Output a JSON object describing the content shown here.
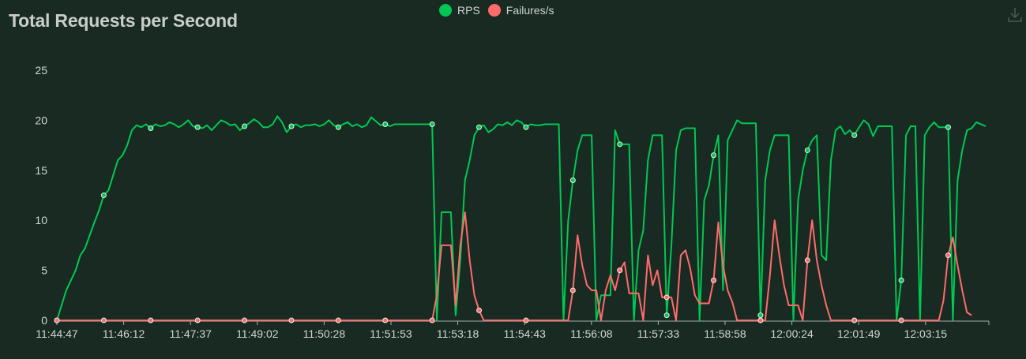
{
  "chart_data": {
    "type": "line",
    "title": "Total Requests per Second",
    "xlabel": "",
    "ylabel": "",
    "ylim": [
      0,
      25
    ],
    "yticks": [
      0,
      5,
      10,
      15,
      20,
      25
    ],
    "x_tick_labels": [
      "11:44:47",
      "11:46:12",
      "11:47:37",
      "11:49:02",
      "11:50:28",
      "11:51:53",
      "11:53:18",
      "11:54:43",
      "11:56:08",
      "11:57:33",
      "11:58:58",
      "12:00:24",
      "12:01:49",
      "12:03:15"
    ],
    "legend_position": "top-center",
    "series": [
      {
        "name": "RPS",
        "color": "#00c853",
        "values": [
          0,
          1.5,
          3,
          4,
          5,
          6.5,
          7.2,
          8.5,
          9.8,
          11,
          12.5,
          13,
          14.5,
          16,
          16.5,
          17.5,
          19,
          19.5,
          19.3,
          19.6,
          19.2,
          19.6,
          19.4,
          19.5,
          19.8,
          19.6,
          19.3,
          19.6,
          20.0,
          19.4,
          19.3,
          19.2,
          19.5,
          19.0,
          19.5,
          20.0,
          19.8,
          19.5,
          19.6,
          19.0,
          19.4,
          19.7,
          20.1,
          19.8,
          19.3,
          19.3,
          19.6,
          20.4,
          19.8,
          18.8,
          19.4,
          19.6,
          19.3,
          19.5,
          19.5,
          19.6,
          19.4,
          19.6,
          20.0,
          19.5,
          19.3,
          19.6,
          19.8,
          19.4,
          19.6,
          19.3,
          19.5,
          20.3,
          19.9,
          19.5,
          19.6,
          19.4,
          19.6,
          19.6,
          19.6,
          19.6,
          19.6,
          19.6,
          19.6,
          19.6,
          19.6,
          0,
          10.8,
          10.8,
          10.8,
          0.5,
          6,
          14,
          16,
          18.5,
          19.3,
          19.5,
          18.8,
          19.1,
          19.6,
          19.5,
          19.8,
          19.5,
          20.0,
          19.8,
          19.3,
          19.6,
          19.5,
          19.5,
          19.6,
          19.6,
          19.6,
          19.6,
          0,
          10,
          14,
          17,
          18.5,
          18.5,
          18.5,
          0,
          2.5,
          2.5,
          2.5,
          19.0,
          17.6,
          17.6,
          17.6,
          0,
          7,
          9,
          16,
          18.5,
          18.5,
          18.5,
          0.5,
          7.5,
          17.0,
          19.0,
          19.2,
          19.2,
          19.2,
          0,
          12,
          13.5,
          16.5,
          18.5,
          3,
          18,
          19.0,
          20.0,
          19.7,
          19.7,
          19.7,
          19.7,
          0.5,
          14,
          17,
          18.5,
          18.5,
          18.5,
          18.5,
          0,
          12,
          15,
          17,
          18,
          18.5,
          6.5,
          6,
          16,
          19.0,
          19.4,
          18.6,
          19.0,
          18.5,
          19.3,
          20.0,
          19.6,
          18.4,
          19.4,
          19.4,
          19.4,
          19.4,
          0,
          4,
          18.5,
          19.4,
          19.4,
          0,
          18.5,
          19.3,
          19.8,
          19.3,
          19.3,
          19.3,
          0,
          14,
          17,
          19,
          19.2,
          19.8,
          19.6,
          19.4
        ]
      },
      {
        "name": "Failures/s",
        "color": "#ff6b6b",
        "values": [
          0,
          0,
          0,
          0,
          0,
          0,
          0,
          0,
          0,
          0,
          0,
          0,
          0,
          0,
          0,
          0,
          0,
          0,
          0,
          0,
          0,
          0,
          0,
          0,
          0,
          0,
          0,
          0,
          0,
          0,
          0,
          0,
          0,
          0,
          0,
          0,
          0,
          0,
          0,
          0,
          0,
          0,
          0,
          0,
          0,
          0,
          0,
          0,
          0,
          0,
          0,
          0,
          0,
          0,
          0,
          0,
          0,
          0,
          0,
          0,
          0,
          0,
          0,
          0,
          0,
          0,
          0,
          0,
          0,
          0,
          0,
          0,
          0,
          0,
          0,
          0,
          0,
          0,
          0,
          0,
          0,
          2.5,
          7.5,
          7.5,
          7.5,
          1.5,
          7.5,
          10.8,
          6,
          2.5,
          1,
          0,
          0,
          0,
          0,
          0,
          0,
          0,
          0,
          0,
          0,
          0,
          0,
          0,
          0,
          0,
          0,
          0,
          0,
          0,
          3,
          8.5,
          5.5,
          3.5,
          3,
          3,
          0,
          3,
          4.5,
          3,
          5,
          5.8,
          2.7,
          2.7,
          2.7,
          0,
          6.5,
          3.5,
          5,
          2.3,
          2.3,
          2.3,
          0,
          6.5,
          7,
          5.2,
          2.5,
          1.7,
          1.7,
          1.7,
          4,
          9.8,
          5.5,
          3,
          1.8,
          0,
          0,
          0,
          0,
          0,
          0,
          0,
          4.5,
          10.0,
          6.5,
          3.5,
          1.5,
          1.5,
          1.5,
          0,
          6,
          10,
          6,
          3.5,
          1.5,
          0,
          0,
          0,
          0,
          0,
          0,
          0,
          0,
          0,
          0,
          0,
          0,
          0,
          0,
          0,
          0,
          0,
          0,
          0,
          0,
          0,
          0,
          0,
          0,
          2,
          6.5,
          8.3,
          5.5,
          3,
          0.8,
          0.5
        ]
      }
    ]
  }
}
